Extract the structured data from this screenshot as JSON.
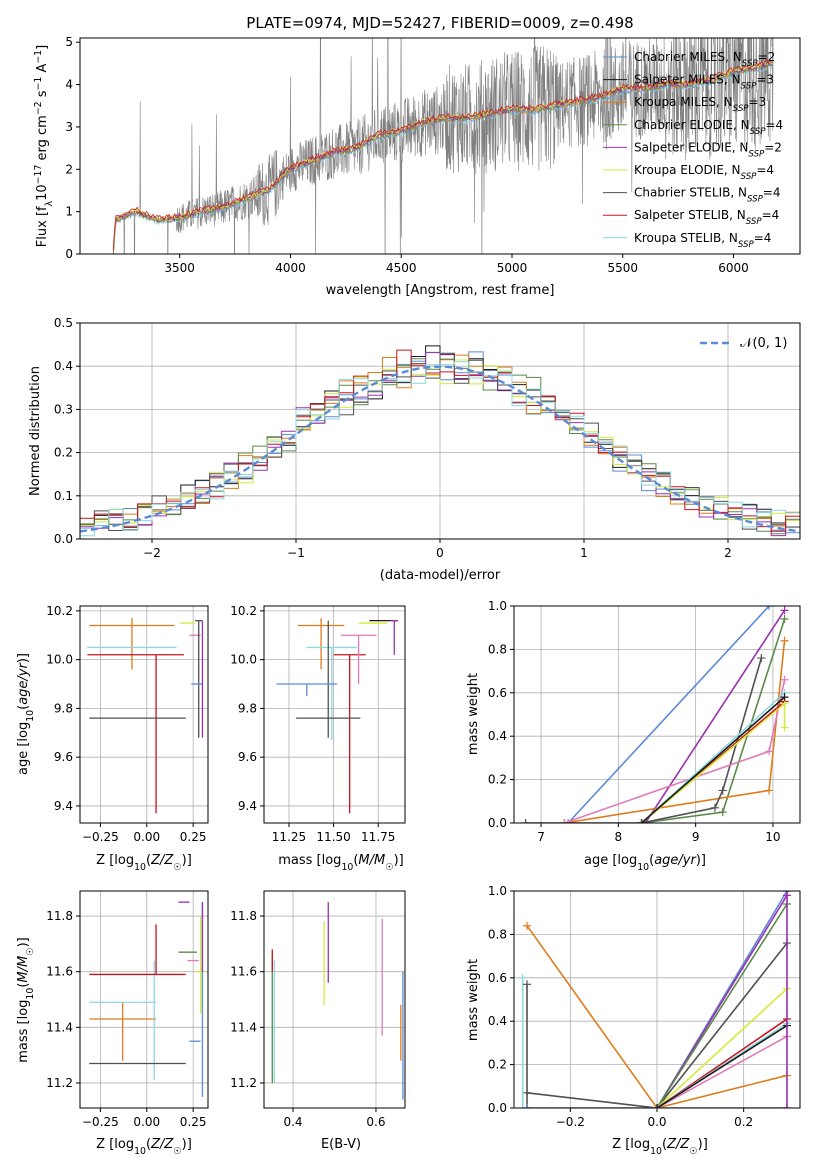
{
  "colors": {
    "chabrier_miles": "#5b8bd6",
    "salpeter_miles": "#1a1a1a",
    "kroupa_miles": "#e07b1a",
    "chabrier_elodie": "#5a8a4a",
    "salpeter_elodie": "#9a30b0",
    "kroupa_elodie": "#d6ea3a",
    "chabrier_stelib": "#505050",
    "salpeter_stelib": "#c8141e",
    "kroupa_stelib": "#8cd7e0",
    "pink": "#e07aba",
    "spectrum": "#808080",
    "grid": "#b0b0b0"
  },
  "chart_data": [
    {
      "id": "spectrum",
      "type": "line",
      "title": "PLATE=0974, MJD=52427, FIBERID=0009, z=0.498",
      "xlabel": "wavelength [Angstrom, rest frame]",
      "ylabel": "Flux [f_λ 10^-17 erg cm^-2 s^-1 A^-1]",
      "xlim": [
        3050,
        6300
      ],
      "ylim": [
        0,
        5.1
      ],
      "xticks": [
        3500,
        4000,
        4500,
        5000,
        5500,
        6000
      ],
      "yticks": [
        0,
        1,
        2,
        3,
        4,
        5
      ],
      "grid": false,
      "legend_position": "top-right",
      "legend": [
        {
          "label": "Chabrier MILES, N_SSP=2",
          "color_key": "chabrier_miles"
        },
        {
          "label": "Salpeter MILES, N_SSP=3",
          "color_key": "salpeter_miles"
        },
        {
          "label": "Kroupa MILES, N_SSP=3",
          "color_key": "kroupa_miles"
        },
        {
          "label": "Chabrier ELODIE, N_SSP=4",
          "color_key": "chabrier_elodie"
        },
        {
          "label": "Salpeter ELODIE, N_SSP=2",
          "color_key": "salpeter_elodie"
        },
        {
          "label": "Kroupa ELODIE, N_SSP=4",
          "color_key": "kroupa_elodie"
        },
        {
          "label": "Chabrier STELIB, N_SSP=4",
          "color_key": "chabrier_stelib"
        },
        {
          "label": "Salpeter STELIB, N_SSP=4",
          "color_key": "salpeter_stelib"
        },
        {
          "label": "Kroupa STELIB, N_SSP=4",
          "color_key": "kroupa_stelib"
        }
      ],
      "model_trend": {
        "x": [
          3200,
          3210,
          3300,
          3400,
          3500,
          3600,
          3700,
          3800,
          3900,
          4000,
          4100,
          4200,
          4300,
          4400,
          4500,
          4600,
          4700,
          4800,
          4900,
          5000,
          5100,
          5200,
          5300,
          5400,
          5500,
          5600,
          5700,
          5800,
          5900,
          6000,
          6100,
          6180
        ],
        "y": [
          0,
          0.8,
          1.0,
          0.8,
          0.85,
          1.0,
          1.1,
          1.3,
          1.5,
          2.0,
          2.2,
          2.4,
          2.5,
          2.8,
          2.9,
          3.1,
          3.2,
          3.2,
          3.3,
          3.4,
          3.4,
          3.5,
          3.6,
          3.7,
          3.9,
          3.9,
          4.0,
          4.0,
          4.1,
          4.3,
          4.4,
          4.5
        ]
      }
    },
    {
      "id": "residuals",
      "type": "line",
      "xlabel": "(data-model)/error",
      "ylabel": "Normed distribution",
      "xlim": [
        -2.5,
        2.5
      ],
      "ylim": [
        0,
        0.5
      ],
      "xticks": [
        -2,
        -1,
        0,
        1,
        2
      ],
      "yticks": [
        0.0,
        0.1,
        0.2,
        0.3,
        0.4,
        0.5
      ],
      "grid": true,
      "legend_position": "top-right",
      "legend_label": "𝒩(0, 1)",
      "gaussian": {
        "mean": 0,
        "sigma": 1
      }
    },
    {
      "id": "age_vs_z",
      "type": "scatter",
      "xlabel": "Z [log10(Z/Z☉)]",
      "ylabel": "age  [log10(age/yr)]",
      "xlim": [
        -0.36,
        0.33
      ],
      "ylim": [
        9.33,
        10.22
      ],
      "xticks": [
        -0.25,
        0.0,
        0.25
      ],
      "yticks": [
        9.4,
        9.6,
        9.8,
        10.0,
        10.2
      ],
      "grid": true,
      "points": [
        {
          "x": -0.08,
          "y": 10.14,
          "xerr": 0.23,
          "yerr": [
            0.18,
            0.03
          ],
          "color_key": "kroupa_miles"
        },
        {
          "x": -0.08,
          "y": 10.05,
          "xerr": 0.24,
          "yerr": [
            0.0,
            0.0
          ],
          "color_key": "kroupa_stelib"
        },
        {
          "x": -0.06,
          "y": 10.02,
          "xerr": 0.26,
          "yerr": [
            0.0,
            0.0
          ],
          "color_key": "salpeter_stelib"
        },
        {
          "x": 0.05,
          "y": 10.02,
          "xerr": 0.0,
          "yerr": [
            0.65,
            0.0
          ],
          "color_key": "salpeter_stelib"
        },
        {
          "x": -0.05,
          "y": 9.76,
          "xerr": 0.26,
          "yerr": [
            0.0,
            0.0
          ],
          "color_key": "chabrier_stelib"
        },
        {
          "x": 0.22,
          "y": 10.15,
          "xerr": 0.04,
          "yerr": [
            0.0,
            0.0
          ],
          "color_key": "kroupa_elodie"
        },
        {
          "x": 0.26,
          "y": 10.1,
          "xerr": 0.03,
          "yerr": [
            0.0,
            0.0
          ],
          "color_key": "pink"
        },
        {
          "x": 0.28,
          "y": 10.16,
          "xerr": 0.02,
          "yerr": [
            0.48,
            0.0
          ],
          "color_key": "chabrier_stelib"
        },
        {
          "x": 0.3,
          "y": 10.16,
          "xerr": 0.0,
          "yerr": [
            0.48,
            0.0
          ],
          "color_key": "salpeter_elodie"
        },
        {
          "x": 0.27,
          "y": 9.9,
          "xerr": 0.03,
          "yerr": [
            0.0,
            0.0
          ],
          "color_key": "chabrier_miles"
        },
        {
          "x": 0.3,
          "y": 10.16,
          "xerr": 0.0,
          "yerr": [
            0.0,
            0.0
          ],
          "color_key": "salpeter_miles"
        }
      ]
    },
    {
      "id": "age_vs_mass",
      "type": "scatter",
      "xlabel": "mass [log10(M/M☉)]",
      "ylabel": "",
      "xlim": [
        11.11,
        11.9
      ],
      "ylim": [
        9.33,
        10.22
      ],
      "xticks": [
        11.25,
        11.5,
        11.75
      ],
      "yticks": [
        9.4,
        9.6,
        9.8,
        10.0,
        10.2
      ],
      "grid": true,
      "points": [
        {
          "x": 11.43,
          "y": 10.14,
          "xerr": 0.13,
          "yerr": [
            0.18,
            0.03
          ],
          "color_key": "kroupa_miles"
        },
        {
          "x": 11.49,
          "y": 10.05,
          "xerr": 0.14,
          "yerr": [
            0.38,
            0.0
          ],
          "color_key": "kroupa_stelib"
        },
        {
          "x": 11.59,
          "y": 10.02,
          "xerr": 0.09,
          "yerr": [
            0.65,
            0.0
          ],
          "color_key": "salpeter_stelib"
        },
        {
          "x": 11.47,
          "y": 9.76,
          "xerr": 0.18,
          "yerr": [
            0.08,
            0.4
          ],
          "color_key": "chabrier_stelib"
        },
        {
          "x": 11.35,
          "y": 9.9,
          "xerr": 0.17,
          "yerr": [
            0.05,
            0.0
          ],
          "color_key": "chabrier_miles"
        },
        {
          "x": 11.64,
          "y": 10.1,
          "xerr": 0.1,
          "yerr": [
            0.2,
            0.0
          ],
          "color_key": "pink"
        },
        {
          "x": 11.72,
          "y": 10.15,
          "xerr": 0.08,
          "yerr": [
            0.0,
            0.0
          ],
          "color_key": "kroupa_elodie"
        },
        {
          "x": 11.78,
          "y": 10.16,
          "xerr": 0.08,
          "yerr": [
            0.0,
            0.0
          ],
          "color_key": "salpeter_miles"
        },
        {
          "x": 11.84,
          "y": 10.16,
          "xerr": 0.02,
          "yerr": [
            0.14,
            0.0
          ],
          "color_key": "salpeter_elodie"
        }
      ]
    },
    {
      "id": "massweight_vs_age",
      "type": "line",
      "xlabel": "age  [log10(age/yr)]",
      "ylabel": "mass weight",
      "xlim": [
        6.65,
        10.35
      ],
      "ylim": [
        0,
        1.0
      ],
      "xticks": [
        7,
        8,
        9,
        10
      ],
      "yticks": [
        0.0,
        0.2,
        0.4,
        0.6,
        0.8,
        1.0
      ],
      "grid": true,
      "series": [
        {
          "color_key": "chabrier_miles",
          "x": [
            7.35,
            9.95
          ],
          "y": [
            0.0,
            1.0
          ]
        },
        {
          "color_key": "salpeter_elodie",
          "x": [
            8.35,
            10.15
          ],
          "y": [
            0.0,
            0.98
          ]
        },
        {
          "color_key": "chabrier_elodie",
          "x": [
            8.3,
            9.35,
            10.15
          ],
          "y": [
            0.0,
            0.05,
            0.94
          ]
        },
        {
          "color_key": "kroupa_miles",
          "x": [
            7.3,
            9.95,
            10.15
          ],
          "y": [
            0.0,
            0.15,
            0.84
          ]
        },
        {
          "color_key": "chabrier_stelib",
          "x": [
            8.3,
            9.25,
            9.35,
            9.85
          ],
          "y": [
            0.0,
            0.07,
            0.15,
            0.76
          ]
        },
        {
          "color_key": "pink",
          "x": [
            7.3,
            9.95,
            10.15
          ],
          "y": [
            0.0,
            0.33,
            0.66
          ]
        },
        {
          "color_key": "kroupa_stelib",
          "x": [
            8.3,
            10.15
          ],
          "y": [
            0.0,
            0.6
          ]
        },
        {
          "color_key": "salpeter_stelib",
          "x": [
            8.3,
            10.15
          ],
          "y": [
            0.0,
            0.56
          ]
        },
        {
          "color_key": "kroupa_elodie",
          "x": [
            8.3,
            10.15,
            10.15
          ],
          "y": [
            0.0,
            0.55,
            0.44
          ]
        },
        {
          "color_key": "salpeter_miles",
          "x": [
            8.3,
            10.15
          ],
          "y": [
            0.0,
            0.58
          ]
        },
        {
          "color_key": "chabrier_stelib",
          "x": [
            6.8,
            8.3
          ],
          "y": [
            0.0,
            0.0
          ]
        }
      ]
    },
    {
      "id": "mass_vs_z",
      "type": "scatter",
      "xlabel": "Z [log10(Z/Z☉)]",
      "ylabel": "mass [log10(M/M☉)]",
      "xlim": [
        -0.36,
        0.33
      ],
      "ylim": [
        11.11,
        11.89
      ],
      "xticks": [
        -0.25,
        0.0,
        0.25
      ],
      "yticks": [
        11.2,
        11.4,
        11.6,
        11.8
      ],
      "grid": true,
      "points": [
        {
          "x": -0.13,
          "y": 11.43,
          "xerr": 0.18,
          "yerr": [
            0.15,
            0.06
          ],
          "color_key": "kroupa_miles"
        },
        {
          "x": -0.13,
          "y": 11.49,
          "xerr": 0.18,
          "yerr": [
            0.0,
            0.0
          ],
          "color_key": "kroupa_stelib"
        },
        {
          "x": 0.04,
          "y": 11.49,
          "xerr": 0.0,
          "yerr": [
            0.28,
            0.15
          ],
          "color_key": "kroupa_stelib"
        },
        {
          "x": -0.05,
          "y": 11.59,
          "xerr": 0.26,
          "yerr": [
            0.0,
            0.0
          ],
          "color_key": "salpeter_stelib"
        },
        {
          "x": 0.05,
          "y": 11.59,
          "xerr": 0.0,
          "yerr": [
            0.0,
            0.18
          ],
          "color_key": "salpeter_stelib"
        },
        {
          "x": -0.05,
          "y": 11.27,
          "xerr": 0.26,
          "yerr": [
            0.0,
            0.0
          ],
          "color_key": "chabrier_stelib"
        },
        {
          "x": 0.2,
          "y": 11.85,
          "xerr": 0.03,
          "yerr": [
            0.0,
            0.0
          ],
          "color_key": "salpeter_elodie"
        },
        {
          "x": 0.22,
          "y": 11.67,
          "xerr": 0.05,
          "yerr": [
            0.0,
            0.0
          ],
          "color_key": "chabrier_elodie"
        },
        {
          "x": 0.25,
          "y": 11.64,
          "xerr": 0.03,
          "yerr": [
            0.0,
            0.0
          ],
          "color_key": "pink"
        },
        {
          "x": 0.26,
          "y": 11.35,
          "xerr": 0.03,
          "yerr": [
            0.0,
            0.0
          ],
          "color_key": "chabrier_miles"
        },
        {
          "x": 0.28,
          "y": 11.6,
          "xerr": 0.02,
          "yerr": [
            0.0,
            0.0
          ],
          "color_key": "kroupa_elodie"
        },
        {
          "x": 0.29,
          "y": 11.6,
          "xerr": 0.0,
          "yerr": [
            0.15,
            0.2
          ],
          "color_key": "kroupa_elodie"
        },
        {
          "x": 0.3,
          "y": 11.4,
          "xerr": 0.0,
          "yerr": [
            0.25,
            0.45
          ],
          "color_key": "chabrier_miles"
        },
        {
          "x": 0.3,
          "y": 11.7,
          "xerr": 0.0,
          "yerr": [
            0.1,
            0.15
          ],
          "color_key": "salpeter_elodie"
        }
      ]
    },
    {
      "id": "mass_vs_ebv",
      "type": "scatter",
      "xlabel": "E(B-V)",
      "ylabel": "",
      "xlim": [
        0.33,
        0.67
      ],
      "ylim": [
        11.11,
        11.89
      ],
      "xticks": [
        0.4,
        0.6
      ],
      "yticks": [
        11.2,
        11.4,
        11.6,
        11.8
      ],
      "grid": true,
      "points": [
        {
          "x": 0.35,
          "y": 11.5,
          "xerr": 0.0,
          "yerr": [
            0.3,
            0.16
          ],
          "color_key": "chabrier_elodie"
        },
        {
          "x": 0.35,
          "y": 11.6,
          "xerr": 0.0,
          "yerr": [
            0.0,
            0.08
          ],
          "color_key": "salpeter_stelib"
        },
        {
          "x": 0.355,
          "y": 11.42,
          "xerr": 0.0,
          "yerr": [
            0.22,
            0.22
          ],
          "color_key": "kroupa_stelib"
        },
        {
          "x": 0.475,
          "y": 11.63,
          "xerr": 0.0,
          "yerr": [
            0.15,
            0.15
          ],
          "color_key": "kroupa_elodie"
        },
        {
          "x": 0.485,
          "y": 11.7,
          "xerr": 0.0,
          "yerr": [
            0.14,
            0.15
          ],
          "color_key": "salpeter_elodie"
        },
        {
          "x": 0.615,
          "y": 11.57,
          "xerr": 0.0,
          "yerr": [
            0.2,
            0.22
          ],
          "color_key": "pink"
        },
        {
          "x": 0.66,
          "y": 11.38,
          "xerr": 0.0,
          "yerr": [
            0.1,
            0.1
          ],
          "color_key": "kroupa_miles"
        },
        {
          "x": 0.665,
          "y": 11.37,
          "xerr": 0.0,
          "yerr": [
            0.23,
            0.23
          ],
          "color_key": "chabrier_miles"
        }
      ]
    },
    {
      "id": "massweight_vs_z",
      "type": "line",
      "xlabel": "Z [log10(Z/Z☉)]",
      "ylabel": "mass weight",
      "xlim": [
        -0.33,
        0.33
      ],
      "ylim": [
        0,
        1.0
      ],
      "xticks": [
        -0.2,
        0.0,
        0.2
      ],
      "yticks": [
        0.0,
        0.2,
        0.4,
        0.6,
        0.8,
        1.0
      ],
      "grid": true,
      "series": [
        {
          "color_key": "kroupa_miles",
          "x": [
            -0.3,
            0.0,
            0.3
          ],
          "y": [
            0.84,
            0.0,
            0.15
          ]
        },
        {
          "color_key": "chabrier_stelib",
          "x": [
            -0.3,
            0.0,
            0.3
          ],
          "y": [
            0.07,
            0.0,
            0.76
          ]
        },
        {
          "color_key": "chabrier_miles",
          "x": [
            0.0,
            0.3
          ],
          "y": [
            0.0,
            1.0
          ]
        },
        {
          "color_key": "salpeter_elodie",
          "x": [
            0.0,
            0.3
          ],
          "y": [
            0.0,
            0.98
          ]
        },
        {
          "color_key": "chabrier_elodie",
          "x": [
            0.0,
            0.3
          ],
          "y": [
            0.0,
            0.94
          ]
        },
        {
          "color_key": "kroupa_elodie",
          "x": [
            0.0,
            0.3
          ],
          "y": [
            0.0,
            0.55
          ]
        },
        {
          "color_key": "salpeter_stelib",
          "x": [
            0.0,
            0.3
          ],
          "y": [
            0.0,
            0.41
          ]
        },
        {
          "color_key": "kroupa_stelib",
          "x": [
            0.0,
            0.3
          ],
          "y": [
            0.0,
            0.39
          ]
        },
        {
          "color_key": "pink",
          "x": [
            0.0,
            0.3
          ],
          "y": [
            0.0,
            0.33
          ]
        },
        {
          "color_key": "salpeter_miles",
          "x": [
            0.0,
            0.3
          ],
          "y": [
            0.0,
            0.38
          ]
        },
        {
          "color_key": "kroupa_stelib",
          "x": [
            -0.31,
            -0.31
          ],
          "y": [
            0.0,
            0.6
          ]
        },
        {
          "color_key": "chabrier_stelib",
          "x": [
            -0.3,
            -0.3
          ],
          "y": [
            0.0,
            0.57
          ]
        },
        {
          "color_key": "chabrier_miles",
          "x": [
            -0.3,
            0.3
          ],
          "y": [
            0.0,
            0.0
          ]
        },
        {
          "color_key": "salpeter_elodie",
          "x": [
            0.3,
            0.3
          ],
          "y": [
            0.0,
            1.0
          ]
        }
      ]
    }
  ]
}
